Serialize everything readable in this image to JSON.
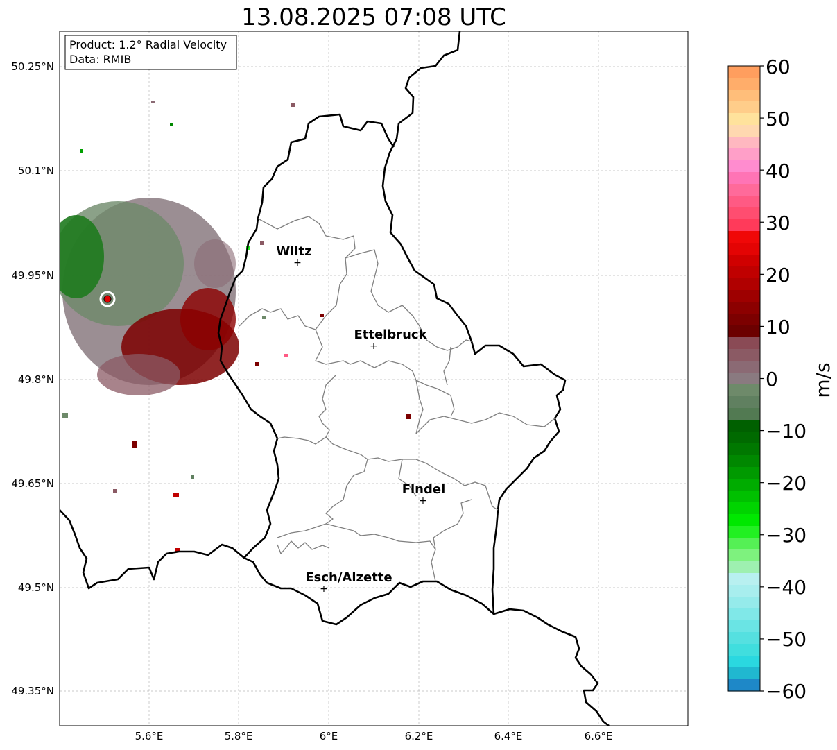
{
  "title": "13.08.2025 07:08 UTC",
  "info_box": {
    "product": "Product: 1.2° Radial Velocity",
    "data": "Data: RMIB"
  },
  "map": {
    "lon_range": [
      5.4,
      6.8
    ],
    "lat_range": [
      49.32,
      50.3
    ],
    "lat_ticks": [
      "50.25°N",
      "50.1°N",
      "49.95°N",
      "49.8°N",
      "49.65°N",
      "49.5°N",
      "49.35°N"
    ],
    "lon_ticks": [
      "5.6°E",
      "5.8°E",
      "6°E",
      "6.2°E",
      "6.4°E",
      "6.6°E"
    ],
    "cities": [
      {
        "name": "Wiltz",
        "lon": 5.93,
        "lat": 49.97
      },
      {
        "name": "Ettelbruck",
        "lon": 6.1,
        "lat": 49.85
      },
      {
        "name": "Findel",
        "lon": 6.21,
        "lat": 49.63
      },
      {
        "name": "Esch/Alzette",
        "lon": 5.99,
        "lat": 49.5
      }
    ],
    "radar_site": {
      "lon": 5.505,
      "lat": 49.915
    }
  },
  "colorbar": {
    "label": "m/s",
    "ticks": [
      "60",
      "50",
      "40",
      "30",
      "20",
      "10",
      "0",
      "−10",
      "−20",
      "−30",
      "−40",
      "−50",
      "−60"
    ],
    "range": [
      -60,
      60
    ],
    "colors_top_to_bottom": [
      "#ff9e5e",
      "#ffad6a",
      "#ffbe7a",
      "#ffcd8a",
      "#ffe29c",
      "#ffd8b0",
      "#ffb8c0",
      "#ff9fc8",
      "#ff8ccf",
      "#ff74b5",
      "#ff6a9a",
      "#ff5a84",
      "#ff4d70",
      "#ff3a5a",
      "#f00808",
      "#e40404",
      "#d00000",
      "#c00000",
      "#b00000",
      "#9e0000",
      "#8c0000",
      "#7c0000",
      "#6c0000",
      "#8a4a55",
      "#8b5a64",
      "#8b6a74",
      "#8a7a80",
      "#6e8a6a",
      "#608060",
      "#527a52",
      "#006000",
      "#006a00",
      "#007800",
      "#008800",
      "#009a00",
      "#00ac00",
      "#00c000",
      "#00d400",
      "#00e800",
      "#22f022",
      "#55f055",
      "#7ef27e",
      "#9ef0b0",
      "#b8f0f0",
      "#a8eeee",
      "#95ebeb",
      "#80e8e8",
      "#6ae4e4",
      "#55e0e0",
      "#40dede",
      "#2ad8e0",
      "#20b8d0",
      "#1e88c8"
    ]
  }
}
